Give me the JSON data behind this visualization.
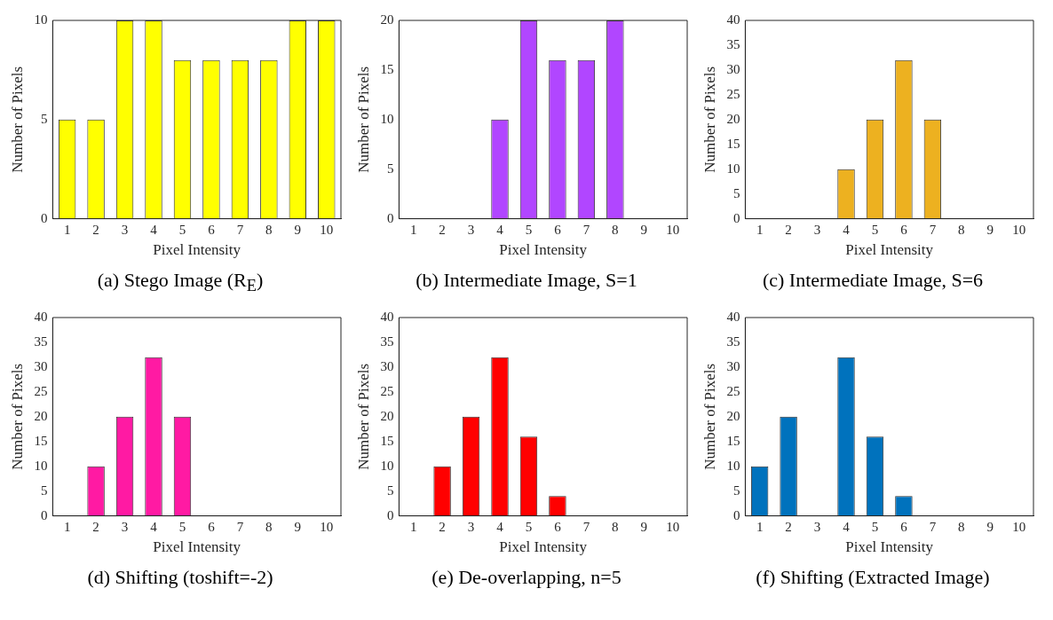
{
  "chart_data": [
    {
      "type": "bar",
      "title": "(a) Stego Image (R$_{E}$)",
      "xlabel": "Pixel Intensity",
      "ylabel": "Number of Pixels",
      "categories": [
        "1",
        "2",
        "3",
        "4",
        "5",
        "6",
        "7",
        "8",
        "9",
        "10"
      ],
      "values": [
        5,
        5,
        10,
        10,
        8,
        8,
        8,
        8,
        10,
        10
      ],
      "color": "#ffff00",
      "ylim": [
        0,
        10
      ],
      "yticks": [
        0,
        5,
        10
      ]
    },
    {
      "type": "bar",
      "title": "(b) Intermediate Image, S=1",
      "xlabel": "Pixel Intensity",
      "ylabel": "Number of Pixels",
      "categories": [
        "1",
        "2",
        "3",
        "4",
        "5",
        "6",
        "7",
        "8",
        "9",
        "10"
      ],
      "values": [
        0,
        0,
        0,
        10,
        20,
        16,
        16,
        20,
        0,
        0
      ],
      "color": "#b146ff",
      "ylim": [
        0,
        20
      ],
      "yticks": [
        0,
        5,
        10,
        15,
        20
      ]
    },
    {
      "type": "bar",
      "title": "(c) Intermediate Image, S=6",
      "xlabel": "Pixel Intensity",
      "ylabel": "Number of Pixels",
      "categories": [
        "1",
        "2",
        "3",
        "4",
        "5",
        "6",
        "7",
        "8",
        "9",
        "10"
      ],
      "values": [
        0,
        0,
        0,
        10,
        20,
        32,
        20,
        0,
        0,
        0
      ],
      "color": "#edb120",
      "ylim": [
        0,
        40
      ],
      "yticks": [
        0,
        5,
        10,
        15,
        20,
        25,
        30,
        35,
        40
      ]
    },
    {
      "type": "bar",
      "title": "(d) Shifting (toshift=-2)",
      "xlabel": "Pixel Intensity",
      "ylabel": "Number of Pixels",
      "categories": [
        "1",
        "2",
        "3",
        "4",
        "5",
        "6",
        "7",
        "8",
        "9",
        "10"
      ],
      "values": [
        0,
        10,
        20,
        32,
        20,
        0,
        0,
        0,
        0,
        0
      ],
      "color": "#ff1aa3",
      "ylim": [
        0,
        40
      ],
      "yticks": [
        0,
        5,
        10,
        15,
        20,
        25,
        30,
        35,
        40
      ]
    },
    {
      "type": "bar",
      "title": "(e) De-overlapping, n=5",
      "xlabel": "Pixel Intensity",
      "ylabel": "Number of Pixels",
      "categories": [
        "1",
        "2",
        "3",
        "4",
        "5",
        "6",
        "7",
        "8",
        "9",
        "10"
      ],
      "values": [
        0,
        10,
        20,
        32,
        16,
        4,
        0,
        0,
        0,
        0
      ],
      "color": "#ff0000",
      "ylim": [
        0,
        40
      ],
      "yticks": [
        0,
        5,
        10,
        15,
        20,
        25,
        30,
        35,
        40
      ]
    },
    {
      "type": "bar",
      "title": "(f) Shifting (Extracted Image)",
      "xlabel": "Pixel Intensity",
      "ylabel": "Number of Pixels",
      "categories": [
        "1",
        "2",
        "3",
        "4",
        "5",
        "6",
        "7",
        "8",
        "9",
        "10"
      ],
      "values": [
        10,
        20,
        0,
        32,
        16,
        4,
        0,
        0,
        0,
        0
      ],
      "color": "#0072bd",
      "ylim": [
        0,
        40
      ],
      "yticks": [
        0,
        5,
        10,
        15,
        20,
        25,
        30,
        35,
        40
      ]
    }
  ]
}
